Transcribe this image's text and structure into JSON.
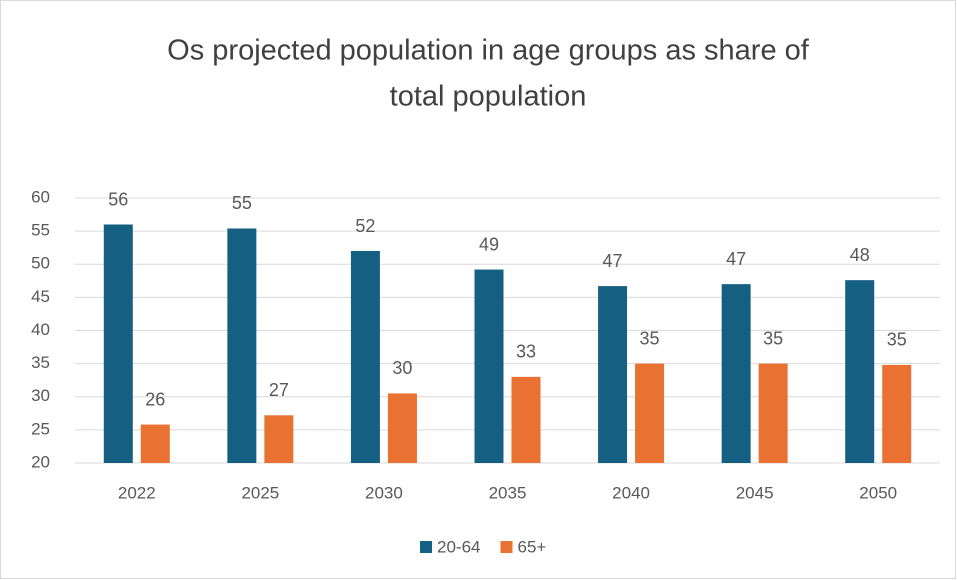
{
  "chart_data": {
    "type": "bar",
    "title": [
      "Os projected population in age groups as share of",
      "total population"
    ],
    "categories": [
      "2022",
      "2025",
      "2030",
      "2035",
      "2040",
      "2045",
      "2050"
    ],
    "series": [
      {
        "name": "20-64",
        "color": "#156082",
        "values": [
          56,
          55.4,
          52,
          49.2,
          46.7,
          47,
          47.6
        ],
        "value_labels": [
          "56",
          "55",
          "52",
          "49",
          "47",
          "47",
          "48"
        ]
      },
      {
        "name": "65+",
        "color": "#e97132",
        "values": [
          25.8,
          27.2,
          30.5,
          33,
          35,
          35,
          34.8
        ],
        "value_labels": [
          "26",
          "27",
          "30",
          "33",
          "35",
          "35",
          "35"
        ]
      }
    ],
    "ylim": [
      20,
      60
    ],
    "yticks": [
      20,
      25,
      30,
      35,
      40,
      45,
      50,
      55,
      60
    ],
    "grid": true,
    "legend": "bottom"
  }
}
